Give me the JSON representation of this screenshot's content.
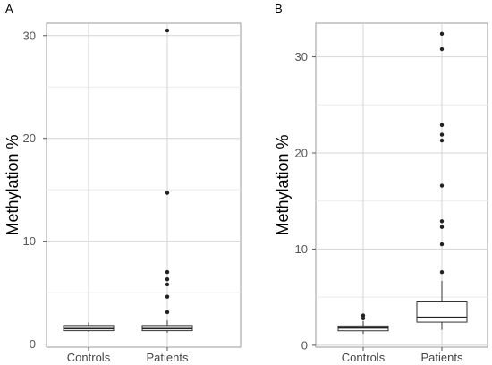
{
  "chart_data": [
    {
      "panel": "A",
      "type": "box",
      "ylabel": "Methylation %",
      "ylim": [
        -0.3,
        31.2
      ],
      "yticks": [
        0,
        10,
        20,
        30
      ],
      "grid": true,
      "categories": [
        "Controls",
        "Patients"
      ],
      "boxes": [
        {
          "category": "Controls",
          "whisker_low": 1.2,
          "q1": 1.3,
          "median": 1.5,
          "q3": 1.8,
          "whisker_high": 2.1,
          "outliers": []
        },
        {
          "category": "Patients",
          "whisker_low": 1.1,
          "q1": 1.3,
          "median": 1.5,
          "q3": 1.8,
          "whisker_high": 2.3,
          "outliers": [
            3.1,
            4.6,
            5.8,
            6.3,
            7.0,
            14.7,
            30.5
          ]
        }
      ]
    },
    {
      "panel": "B",
      "type": "box",
      "ylabel": "Methylation %",
      "ylim": [
        -0.2,
        33.5
      ],
      "yticks": [
        0,
        10,
        20,
        30
      ],
      "grid": true,
      "categories": [
        "Controls",
        "Patients"
      ],
      "boxes": [
        {
          "category": "Controls",
          "whisker_low": 1.2,
          "q1": 1.5,
          "median": 1.8,
          "q3": 2.0,
          "whisker_high": 2.5,
          "outliers": [
            2.8,
            3.1
          ]
        },
        {
          "category": "Patients",
          "whisker_low": 1.6,
          "q1": 2.4,
          "median": 2.9,
          "q3": 4.5,
          "whisker_high": 6.7,
          "outliers": [
            7.6,
            10.5,
            12.3,
            12.9,
            16.6,
            21.3,
            21.9,
            22.9,
            30.8,
            32.4
          ]
        }
      ]
    }
  ]
}
